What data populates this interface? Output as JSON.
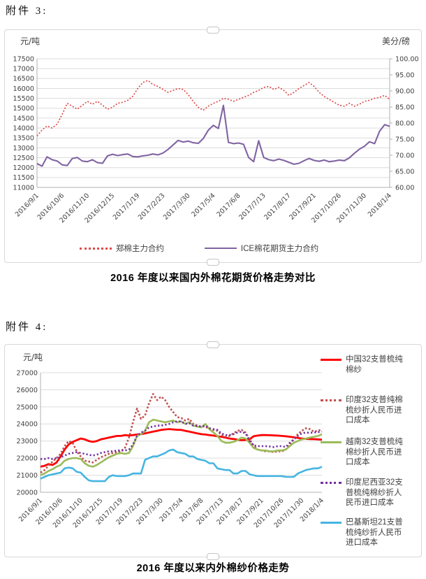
{
  "page": {
    "attachment3_label": "附件 3:",
    "attachment4_label": "附件 4:",
    "caption1": "2016 年度以来国内外棉花期货价格走势对比",
    "caption2": "2016 年度以来内外棉纱价格走势"
  },
  "chart_data": [
    {
      "type": "line",
      "title": "2016 年度以来国内外棉花期货价格走势对比",
      "left_axis": {
        "label": "元/吨",
        "min": 11000,
        "max": 17500,
        "step": 500,
        "decimals": 0
      },
      "right_axis": {
        "label": "美分/磅",
        "min": 60,
        "max": 100,
        "step": 5,
        "decimals": 2
      },
      "x_ticks": [
        "2016/9/1",
        "2016/10/6",
        "2016/11/10",
        "2016/12/15",
        "2017/1/19",
        "2017/2/23",
        "2017/3/30",
        "2017/5/4",
        "2017/6/8",
        "2017/7/13",
        "2017/8/17",
        "2017/9/21",
        "2017/10/26",
        "2017/11/30",
        "2018/1/4"
      ],
      "tick_every": 5,
      "grid": true,
      "legend_position": "bottom",
      "series": [
        {
          "name": "郑棉主力合约",
          "axis": "left",
          "color": "#e04a4a",
          "style": "dotted",
          "dash": "2 2.4",
          "width": 1.7,
          "values": [
            13600,
            13900,
            14100,
            14000,
            14200,
            14700,
            15250,
            15100,
            14950,
            15150,
            15350,
            15200,
            15350,
            15150,
            14950,
            15050,
            15250,
            15300,
            15400,
            15600,
            16000,
            16300,
            16400,
            16200,
            16100,
            15950,
            15800,
            15900,
            16000,
            15950,
            15700,
            15350,
            15050,
            14900,
            15100,
            15250,
            15350,
            15500,
            15450,
            15350,
            15450,
            15550,
            15650,
            15800,
            15900,
            16050,
            16100,
            15950,
            16050,
            15900,
            15650,
            15800,
            16000,
            16150,
            16300,
            16100,
            15800,
            15600,
            15450,
            15300,
            15150,
            15100,
            15250,
            15100,
            15200,
            15350,
            15400,
            15500,
            15550,
            15650,
            15450
          ]
        },
        {
          "name": "ICE棉花期货主力合约",
          "axis": "right",
          "color": "#8064A2",
          "style": "solid",
          "dash": "",
          "width": 2.1,
          "values": [
            67.4,
            66.6,
            69.5,
            68.6,
            68.2,
            67.0,
            66.8,
            69.0,
            69.3,
            68.2,
            68.0,
            68.6,
            67.7,
            67.5,
            69.8,
            70.3,
            69.9,
            70.2,
            70.4,
            69.6,
            69.5,
            69.8,
            70.0,
            70.4,
            70.1,
            70.7,
            71.8,
            73.2,
            74.6,
            74.1,
            74.4,
            73.9,
            73.7,
            75.2,
            77.8,
            79.3,
            78.3,
            85.5,
            74.0,
            73.6,
            73.8,
            73.4,
            69.3,
            68.0,
            74.5,
            69.3,
            68.6,
            68.3,
            68.8,
            68.4,
            67.8,
            67.2,
            67.5,
            68.3,
            69.0,
            68.4,
            68.1,
            68.5,
            68.0,
            68.2,
            68.5,
            68.3,
            69.2,
            70.6,
            71.9,
            72.8,
            74.2,
            73.6,
            77.5,
            79.5,
            79.0
          ]
        }
      ]
    },
    {
      "type": "line",
      "title": "2016 年度以来内外棉纱价格走势",
      "left_axis": {
        "label": "元/吨",
        "min": 20000,
        "max": 27000,
        "step": 1000,
        "decimals": 0
      },
      "right_axis": null,
      "x_ticks": [
        "2016/9/1",
        "2016/10/6",
        "2016/11/10",
        "2016/12/15",
        "2017/1/19",
        "2017/2/23",
        "2017/3/30",
        "2017/5/4",
        "2017/6/8",
        "2017/7/13",
        "2017/8/17",
        "2017/9/21",
        "2017/10/26",
        "2017/11/30",
        "2018/1/4"
      ],
      "tick_every": 5,
      "grid": true,
      "legend_position": "right",
      "series": [
        {
          "name": "中国32支普梳纯棉纱",
          "axis": "left",
          "color": "#ff0000",
          "style": "solid",
          "dash": "",
          "width": 2.8,
          "values": [
            21500,
            21550,
            21650,
            21600,
            21750,
            22100,
            22500,
            22800,
            22950,
            23050,
            23150,
            23100,
            23000,
            22950,
            23000,
            23100,
            23150,
            23200,
            23250,
            23300,
            23300,
            23350,
            23320,
            23350,
            23380,
            23400,
            23450,
            23500,
            23550,
            23600,
            23650,
            23680,
            23700,
            23680,
            23660,
            23650,
            23600,
            23550,
            23500,
            23450,
            23400,
            23380,
            23350,
            23320,
            23280,
            23250,
            23200,
            23150,
            23120,
            23080,
            23050,
            23060,
            23100,
            23280,
            23320,
            23350,
            23350,
            23340,
            23330,
            23320,
            23300,
            23280,
            23250,
            23220,
            23180,
            23150,
            23130,
            23120,
            23110,
            23100,
            23080
          ]
        },
        {
          "name": "印度32支普纯棉梳纱折人民币进口成本",
          "axis": "left",
          "color": "#C0504D",
          "style": "dotted",
          "dash": "2.6 2.6",
          "width": 2.6,
          "values": [
            21150,
            21300,
            21550,
            21800,
            22000,
            22250,
            22700,
            23000,
            22900,
            22400,
            22100,
            21850,
            21800,
            21750,
            21900,
            22050,
            22150,
            22250,
            22300,
            22350,
            22400,
            22600,
            23200,
            24100,
            24900,
            24300,
            24500,
            25200,
            25750,
            25400,
            25600,
            25400,
            25000,
            24700,
            24400,
            24350,
            24200,
            24300,
            24000,
            23900,
            23850,
            23850,
            23700,
            23650,
            23600,
            23350,
            23250,
            23300,
            23450,
            23600,
            23650,
            23500,
            23100,
            22750,
            22500,
            22450,
            22400,
            22400,
            22350,
            22400,
            22400,
            22500,
            22800,
            23100,
            23400,
            23600,
            23750,
            23700,
            23550,
            23600,
            23680
          ]
        },
        {
          "name": "越南32支普梳纯棉纱折人民币进口成本",
          "axis": "left",
          "color": "#9BBB59",
          "style": "solid",
          "dash": "",
          "width": 2.6,
          "values": [
            21000,
            21100,
            21250,
            21350,
            21500,
            21600,
            21850,
            21950,
            22000,
            22000,
            21950,
            21700,
            21550,
            21500,
            21600,
            21750,
            21900,
            22050,
            22150,
            22250,
            22300,
            22250,
            22300,
            22700,
            23300,
            23400,
            23600,
            24100,
            24250,
            24200,
            24150,
            24100,
            24150,
            24200,
            24100,
            24150,
            24000,
            24100,
            23900,
            23850,
            23800,
            24000,
            23700,
            23500,
            23300,
            23000,
            22900,
            22900,
            22950,
            23050,
            23200,
            23150,
            22900,
            22600,
            22500,
            22450,
            22450,
            22400,
            22400,
            22450,
            22450,
            22500,
            22700,
            22900,
            23000,
            23100,
            23150,
            23200,
            23250,
            23300,
            23400
          ]
        },
        {
          "name": "印度尼西亚32支普梳纯棉纱折人民币进口成本",
          "axis": "left",
          "color": "#7030A0",
          "style": "dotted",
          "dash": "2.2 3",
          "width": 2.6,
          "values": [
            21950,
            21950,
            22000,
            21950,
            22000,
            22050,
            22150,
            22250,
            22300,
            22350,
            22300,
            22250,
            22200,
            22150,
            22200,
            22300,
            22350,
            22400,
            22400,
            22450,
            22450,
            22450,
            22500,
            22800,
            23300,
            23500,
            23600,
            23800,
            23850,
            23900,
            23900,
            23950,
            24000,
            24100,
            24150,
            24150,
            24000,
            24050,
            23900,
            23880,
            23850,
            23900,
            23750,
            23700,
            23650,
            23450,
            23350,
            23350,
            23400,
            23500,
            23550,
            23450,
            23000,
            22750,
            22700,
            22700,
            22700,
            22680,
            22650,
            22700,
            22700,
            22650,
            22900,
            23100,
            23300,
            23450,
            23500,
            23480,
            23500,
            23520,
            23550
          ]
        },
        {
          "name": "巴基斯坦21支普梳纯纱折人民币进口成本",
          "axis": "left",
          "color": "#45B5E2",
          "style": "solid",
          "dash": "",
          "width": 2.6,
          "values": [
            20800,
            20900,
            21000,
            21050,
            21100,
            21150,
            21400,
            21450,
            21400,
            21200,
            21150,
            20900,
            20700,
            20650,
            20650,
            20650,
            20650,
            20900,
            21000,
            20950,
            20950,
            20950,
            21000,
            21100,
            21100,
            21100,
            21900,
            22000,
            22100,
            22100,
            22200,
            22300,
            22450,
            22500,
            22350,
            22300,
            22250,
            22100,
            22100,
            21950,
            21900,
            21850,
            21700,
            21700,
            21400,
            21350,
            21300,
            21300,
            21100,
            21100,
            21250,
            21250,
            21050,
            21000,
            20950,
            20950,
            20950,
            20950,
            20950,
            20950,
            20950,
            20900,
            20900,
            20900,
            21100,
            21200,
            21300,
            21350,
            21400,
            21400,
            21500
          ]
        }
      ]
    }
  ]
}
